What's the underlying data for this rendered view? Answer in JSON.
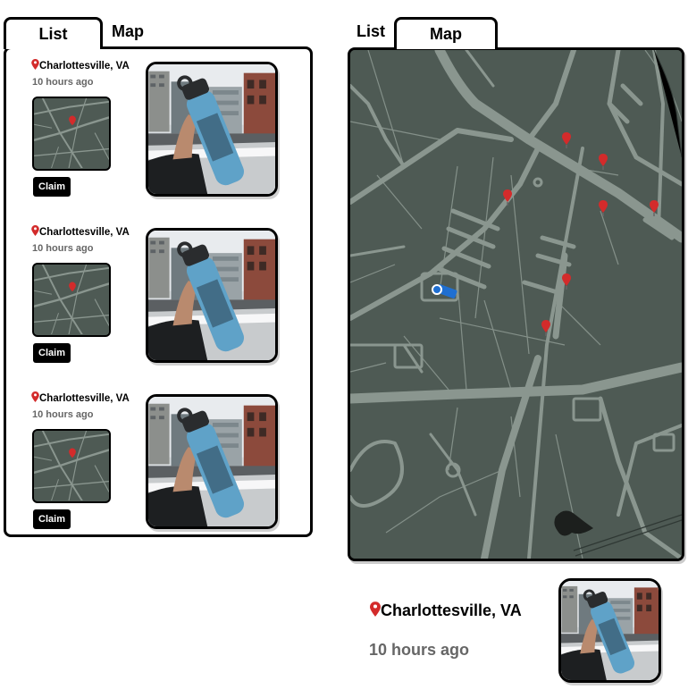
{
  "left": {
    "tabs": {
      "list": "List",
      "map": "Map"
    },
    "items": [
      {
        "location": "Charlottesville, VA",
        "time": "10 hours ago",
        "claim": "Claim"
      },
      {
        "location": "Charlottesville, VA",
        "time": "10 hours ago",
        "claim": "Claim"
      },
      {
        "location": "Charlottesville, VA",
        "time": "10 hours ago",
        "claim": "Claim"
      }
    ]
  },
  "right": {
    "tabs": {
      "list": "List",
      "map": "Map"
    },
    "detail": {
      "location": "Charlottesville, VA",
      "time": "10 hours ago"
    }
  },
  "colors": {
    "map_bg": "#4e5a54",
    "road": "#8a968f",
    "pin": "#d32b2b",
    "user": "#1f6fd1",
    "bottle": "#5fa2c8"
  }
}
